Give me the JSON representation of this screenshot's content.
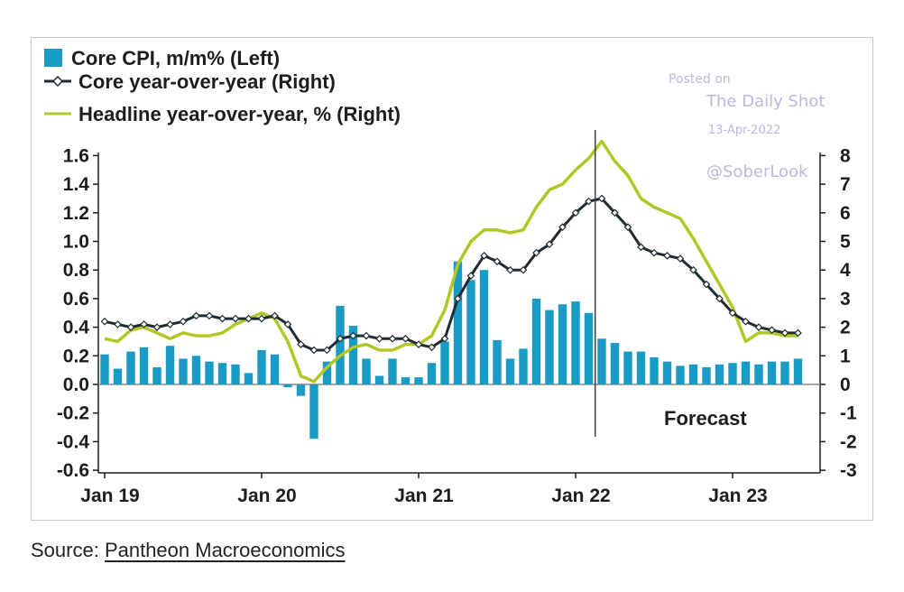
{
  "chart_data": {
    "type": "bar+line",
    "legend": [
      {
        "label": "Core CPI, m/m% (Left)",
        "marker": "bar",
        "color": "#1a9bc6"
      },
      {
        "label": "Core year-over-year (Right)",
        "marker": "line-diamond",
        "color": "#1f2d33"
      },
      {
        "label": "Headline year-over-year, % (Right)",
        "marker": "line",
        "color": "#b2c726"
      }
    ],
    "left_axis": {
      "min": -0.6,
      "max": 1.7,
      "ticks": [
        "1.6",
        "1.4",
        "1.2",
        "1.0",
        "0.8",
        "0.6",
        "0.4",
        "0.2",
        "0.0",
        "-0.2",
        "-0.4",
        "-0.6"
      ]
    },
    "right_axis": {
      "min": -3,
      "max": 8.5,
      "ticks": [
        "8",
        "7",
        "6",
        "5",
        "4",
        "3",
        "2",
        "1",
        "0",
        "-1",
        "-2",
        "-3"
      ]
    },
    "x_axis": {
      "labels": [
        "Jan 19",
        "Jan 20",
        "Jan 21",
        "Jan 22",
        "Jan 23"
      ],
      "label_month_index": [
        0,
        12,
        24,
        36,
        48
      ]
    },
    "forecast_start_month_index": 38,
    "annotation": "Forecast",
    "series": [
      {
        "name": "Core CPI, m/m% (Left)",
        "axis": "left",
        "type": "bar",
        "values": [
          0.21,
          0.11,
          0.23,
          0.26,
          0.12,
          0.27,
          0.18,
          0.2,
          0.16,
          0.15,
          0.14,
          0.08,
          0.24,
          0.21,
          -0.02,
          -0.08,
          -0.38,
          0.16,
          0.55,
          0.41,
          0.18,
          0.06,
          0.18,
          0.05,
          0.05,
          0.15,
          0.3,
          0.86,
          0.73,
          0.8,
          0.31,
          0.18,
          0.25,
          0.6,
          0.52,
          0.56,
          0.58,
          0.5,
          0.32,
          0.29,
          0.23,
          0.23,
          0.19,
          0.16,
          0.13,
          0.14,
          0.12,
          0.14,
          0.15,
          0.16,
          0.14,
          0.16,
          0.16,
          0.18
        ]
      },
      {
        "name": "Core year-over-year (Right)",
        "axis": "right",
        "type": "line",
        "values": [
          2.2,
          2.1,
          2.0,
          2.1,
          2.0,
          2.1,
          2.2,
          2.4,
          2.4,
          2.3,
          2.3,
          2.3,
          2.3,
          2.4,
          2.1,
          1.4,
          1.2,
          1.2,
          1.6,
          1.7,
          1.7,
          1.6,
          1.6,
          1.6,
          1.4,
          1.3,
          1.6,
          3.0,
          3.8,
          4.5,
          4.3,
          4.0,
          4.0,
          4.6,
          4.9,
          5.5,
          6.0,
          6.4,
          6.5,
          6.0,
          5.5,
          4.8,
          4.6,
          4.5,
          4.4,
          4.0,
          3.5,
          3.0,
          2.5,
          2.2,
          2.0,
          1.9,
          1.8,
          1.8
        ]
      },
      {
        "name": "Headline year-over-year, % (Right)",
        "axis": "right",
        "type": "line",
        "values": [
          1.6,
          1.5,
          1.9,
          2.0,
          1.8,
          1.6,
          1.8,
          1.7,
          1.7,
          1.8,
          2.1,
          2.3,
          2.5,
          2.3,
          1.5,
          0.3,
          0.1,
          0.6,
          1.0,
          1.3,
          1.4,
          1.2,
          1.2,
          1.4,
          1.4,
          1.7,
          2.6,
          4.2,
          5.0,
          5.4,
          5.4,
          5.3,
          5.4,
          6.2,
          6.8,
          7.0,
          7.5,
          7.9,
          8.5,
          7.8,
          7.3,
          6.5,
          6.2,
          6.0,
          5.8,
          5.1,
          4.3,
          3.5,
          2.7,
          1.5,
          1.8,
          1.8,
          1.7,
          1.7
        ]
      }
    ]
  },
  "watermark": {
    "posted_on": "Posted on",
    "brand": "The Daily Shot",
    "date": "13-Apr-2022",
    "handle": "@SoberLook"
  },
  "source": {
    "prefix": "Source: ",
    "link_text": "Pantheon Macroeconomics"
  }
}
